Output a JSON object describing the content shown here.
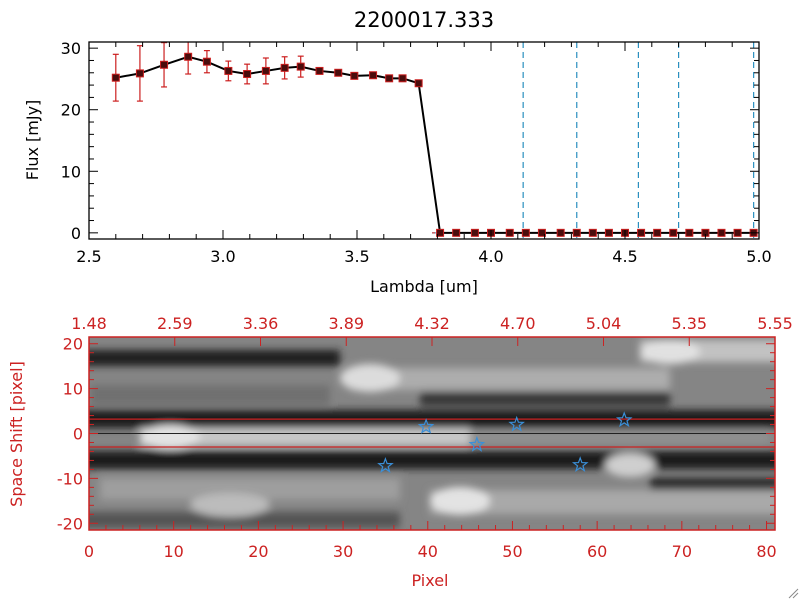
{
  "colors": {
    "axis": "#000000",
    "accent": "#cc2222",
    "marker_fill": "#4a0d0d",
    "errorbar": "#cc1f1f",
    "dash": "#2a8fbf",
    "star": "#3a8fd8"
  },
  "chart_data": [
    {
      "type": "line",
      "title": "2200017.333",
      "xlabel": "Lambda [um]",
      "ylabel": "Flux [mJy]",
      "xlim": [
        2.5,
        5.0
      ],
      "ylim": [
        -1,
        31
      ],
      "xticks": [
        "2.5",
        "3.0",
        "3.5",
        "4.0",
        "4.5",
        "5.0"
      ],
      "yticks": [
        "0",
        "10",
        "20",
        "30"
      ],
      "x": [
        2.6,
        2.69,
        2.78,
        2.87,
        2.94,
        3.02,
        3.09,
        3.16,
        3.23,
        3.29,
        3.36,
        3.43,
        3.49,
        3.56,
        3.62,
        3.67,
        3.73,
        3.81,
        3.87,
        3.94,
        4.0,
        4.07,
        4.13,
        4.19,
        4.26,
        4.32,
        4.38,
        4.44,
        4.5,
        4.56,
        4.62,
        4.68,
        4.74,
        4.8,
        4.86,
        4.92,
        4.98
      ],
      "y": [
        25.2,
        25.9,
        27.3,
        28.6,
        27.8,
        26.3,
        25.8,
        26.3,
        26.8,
        27.0,
        26.3,
        26.0,
        25.5,
        25.6,
        25.1,
        25.1,
        24.3,
        0,
        0,
        0,
        0,
        0,
        0,
        0,
        0,
        0,
        0,
        0,
        0,
        0,
        0,
        0,
        0,
        0,
        0,
        0,
        0
      ],
      "yerr": [
        3.8,
        4.5,
        3.6,
        2.8,
        1.8,
        1.6,
        1.6,
        2.1,
        1.8,
        1.7,
        0,
        0,
        0,
        0,
        0,
        0,
        0,
        0,
        0,
        0,
        0,
        0,
        0,
        0,
        0,
        0,
        0,
        0,
        0,
        0,
        0,
        0,
        0,
        0,
        0,
        0,
        0
      ],
      "vlines": [
        4.12,
        4.32,
        4.55,
        4.7,
        4.98
      ],
      "hline": 0
    },
    {
      "type": "heatmap",
      "xlabel": "Pixel",
      "ylabel": "Space Shift [pixel]",
      "xlim": [
        0,
        81
      ],
      "ylim": [
        -21.5,
        21.5
      ],
      "xticks": [
        "0",
        "10",
        "20",
        "30",
        "40",
        "50",
        "60",
        "70",
        "80"
      ],
      "yticks": [
        "-20",
        "-10",
        "0",
        "10",
        "20"
      ],
      "top_ticks": [
        "1.48",
        "2.59",
        "3.36",
        "3.89",
        "4.32",
        "4.70",
        "5.04",
        "5.35",
        "5.55"
      ],
      "stars": [
        [
          35,
          -7.2
        ],
        [
          39.8,
          1.5
        ],
        [
          45.8,
          -2.5
        ],
        [
          50.5,
          2
        ],
        [
          58,
          -7
        ],
        [
          63.2,
          3
        ]
      ],
      "aperture": [
        -3,
        3.2
      ]
    }
  ]
}
